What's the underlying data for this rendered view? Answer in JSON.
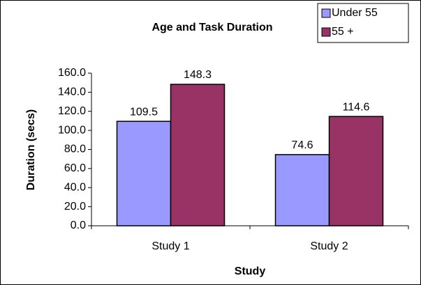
{
  "chart_data": {
    "type": "bar",
    "title": "Age and Task Duration",
    "x_label": "Study",
    "y_label": "Duration (secs)",
    "categories": [
      "Study 1",
      "Study 2"
    ],
    "series": [
      {
        "name": "Under 55",
        "color": "#9999ff",
        "values": [
          109.5,
          74.6
        ]
      },
      {
        "name": "55 +",
        "color": "#993366",
        "values": [
          148.3,
          114.6
        ]
      }
    ],
    "ylim": [
      0,
      160
    ],
    "yticks": [
      {
        "value": 0,
        "label": "0.0"
      },
      {
        "value": 20,
        "label": "20.0"
      },
      {
        "value": 40,
        "label": "40.0"
      },
      {
        "value": 60,
        "label": "60.0"
      },
      {
        "value": 80,
        "label": "80.0"
      },
      {
        "value": 100,
        "label": "100.0"
      },
      {
        "value": 120,
        "label": "120.0"
      },
      {
        "value": 140,
        "label": "140.0"
      },
      {
        "value": 160,
        "label": "160.0"
      }
    ],
    "legend": "top-right",
    "grid": false
  }
}
